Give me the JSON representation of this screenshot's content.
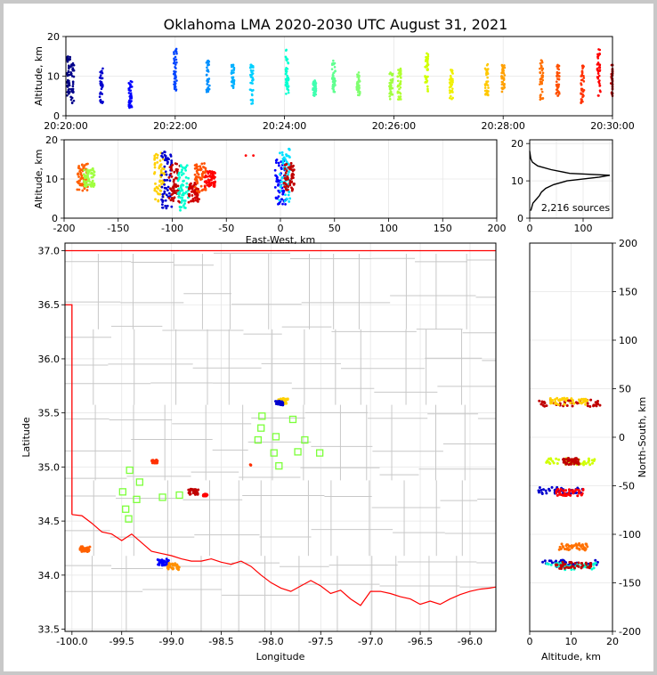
{
  "chart_data": {
    "type": "scatter",
    "title": "Oklahoma LMA 2020-2030 UTC August 31, 2021",
    "panels": {
      "time_altitude": {
        "ylabel": "Altitude, km",
        "ylim": [
          0,
          20
        ],
        "yticks": [
          "0",
          "10",
          "20"
        ],
        "xticks": [
          "20:20:00",
          "20:22:00",
          "20:24:00",
          "20:26:00",
          "20:28:00",
          "20:30:00"
        ],
        "xlim_minutes": [
          0,
          10
        ],
        "clusters": [
          {
            "t": 0.05,
            "alt_min": 5,
            "alt_max": 15,
            "color": "#000080"
          },
          {
            "t": 0.12,
            "alt_min": 3,
            "alt_max": 14,
            "color": "#00008b"
          },
          {
            "t": 0.65,
            "alt_min": 3,
            "alt_max": 12,
            "color": "#0000cd"
          },
          {
            "t": 1.18,
            "alt_min": 2,
            "alt_max": 9,
            "color": "#0000ff"
          },
          {
            "t": 2.0,
            "alt_min": 6,
            "alt_max": 17,
            "color": "#0044ff"
          },
          {
            "t": 2.6,
            "alt_min": 6,
            "alt_max": 14,
            "color": "#0090ff"
          },
          {
            "t": 3.05,
            "alt_min": 7,
            "alt_max": 13,
            "color": "#00b0ff"
          },
          {
            "t": 3.4,
            "alt_min": 3,
            "alt_max": 13,
            "color": "#00d0ff"
          },
          {
            "t": 4.05,
            "alt_min": 5,
            "alt_max": 17,
            "color": "#00ffd0"
          },
          {
            "t": 4.55,
            "alt_min": 5,
            "alt_max": 9,
            "color": "#40ffb0"
          },
          {
            "t": 4.9,
            "alt_min": 6,
            "alt_max": 14,
            "color": "#60ff90"
          },
          {
            "t": 5.35,
            "alt_min": 5,
            "alt_max": 11,
            "color": "#80ff70"
          },
          {
            "t": 5.95,
            "alt_min": 4,
            "alt_max": 11,
            "color": "#a0ff40"
          },
          {
            "t": 6.1,
            "alt_min": 4,
            "alt_max": 12,
            "color": "#b0ff30"
          },
          {
            "t": 6.6,
            "alt_min": 6,
            "alt_max": 16,
            "color": "#d0ff00"
          },
          {
            "t": 7.05,
            "alt_min": 4,
            "alt_max": 12,
            "color": "#f0f000"
          },
          {
            "t": 7.7,
            "alt_min": 5,
            "alt_max": 13,
            "color": "#ffc800"
          },
          {
            "t": 8.0,
            "alt_min": 6,
            "alt_max": 13,
            "color": "#ffa000"
          },
          {
            "t": 8.7,
            "alt_min": 4,
            "alt_max": 14,
            "color": "#ff7000"
          },
          {
            "t": 9.0,
            "alt_min": 5,
            "alt_max": 13,
            "color": "#ff5000"
          },
          {
            "t": 9.45,
            "alt_min": 3,
            "alt_max": 13,
            "color": "#ff3000"
          },
          {
            "t": 9.75,
            "alt_min": 5,
            "alt_max": 17,
            "color": "#ff0000"
          },
          {
            "t": 10.0,
            "alt_min": 5,
            "alt_max": 13,
            "color": "#b00000"
          }
        ]
      },
      "ew_altitude": {
        "xlabel": "East-West, km",
        "ylabel": "Altitude, km",
        "xlim": [
          -200,
          200
        ],
        "ylim": [
          0,
          20
        ],
        "xticks": [
          "-200",
          "-150",
          "-100",
          "-50",
          "0",
          "50",
          "100",
          "150",
          "200"
        ],
        "yticks": [
          "0",
          "10",
          "20"
        ],
        "clusters": [
          {
            "x": -183,
            "alt_min": 7,
            "alt_max": 14,
            "color": "#ff6000"
          },
          {
            "x": -177,
            "alt_min": 8,
            "alt_max": 13,
            "color": "#a0ff40"
          },
          {
            "x": -112,
            "alt_min": 4,
            "alt_max": 17,
            "color": "#ffd000"
          },
          {
            "x": -105,
            "alt_min": 2,
            "alt_max": 17,
            "color": "#0000cd"
          },
          {
            "x": -98,
            "alt_min": 4,
            "alt_max": 14,
            "color": "#c00000"
          },
          {
            "x": -90,
            "alt_min": 2,
            "alt_max": 14,
            "color": "#00ffd0"
          },
          {
            "x": -80,
            "alt_min": 4,
            "alt_max": 9,
            "color": "#d00000"
          },
          {
            "x": -74,
            "alt_min": 6,
            "alt_max": 14,
            "color": "#ff5000"
          },
          {
            "x": -65,
            "alt_min": 8,
            "alt_max": 12,
            "color": "#ff0000"
          },
          {
            "x": -27,
            "alt_min": 16,
            "alt_max": 16,
            "color": "#ff0000"
          },
          {
            "x": 0,
            "alt_min": 3,
            "alt_max": 15,
            "color": "#0000ff"
          },
          {
            "x": 4,
            "alt_min": 4,
            "alt_max": 18,
            "color": "#00e0ff"
          },
          {
            "x": 8,
            "alt_min": 7,
            "alt_max": 14,
            "color": "#c00000"
          }
        ]
      },
      "altitude_histogram": {
        "xticks": [
          "0",
          "100"
        ],
        "yticks": [
          "0",
          "10",
          "20"
        ],
        "xlim": [
          0,
          155
        ],
        "ylim": [
          0,
          21
        ],
        "annotation": "2,216 sources",
        "counts_by_altitude": [
          {
            "alt": 2,
            "n": 2
          },
          {
            "alt": 3,
            "n": 4
          },
          {
            "alt": 4,
            "n": 6
          },
          {
            "alt": 5,
            "n": 12
          },
          {
            "alt": 6,
            "n": 18
          },
          {
            "alt": 7,
            "n": 22
          },
          {
            "alt": 8,
            "n": 30
          },
          {
            "alt": 9,
            "n": 45
          },
          {
            "alt": 10,
            "n": 70
          },
          {
            "alt": 11,
            "n": 130
          },
          {
            "alt": 11.5,
            "n": 150
          },
          {
            "alt": 12,
            "n": 75
          },
          {
            "alt": 13,
            "n": 40
          },
          {
            "alt": 14,
            "n": 15
          },
          {
            "alt": 15,
            "n": 5
          },
          {
            "alt": 16,
            "n": 2
          },
          {
            "alt": 17,
            "n": 1
          },
          {
            "alt": 18,
            "n": 0
          }
        ]
      },
      "plan_view": {
        "xlabel": "Longitude",
        "ylabel": "Latitude",
        "xlim": [
          -100.07,
          -95.74
        ],
        "ylim": [
          33.48,
          37.07
        ],
        "xticks": [
          "-100.0",
          "-99.5",
          "-99.0",
          "-98.5",
          "-98.0",
          "-97.5",
          "-97.0",
          "-96.5",
          "-96.0"
        ],
        "yticks": [
          "33.5",
          "34.0",
          "34.5",
          "35.0",
          "35.5",
          "36.0",
          "36.5",
          "37.0"
        ],
        "stations": [
          [
            -99.42,
            34.97
          ],
          [
            -99.32,
            34.86
          ],
          [
            -99.35,
            34.7
          ],
          [
            -99.49,
            34.77
          ],
          [
            -99.46,
            34.61
          ],
          [
            -99.43,
            34.52
          ],
          [
            -99.09,
            34.72
          ],
          [
            -98.09,
            35.47
          ],
          [
            -98.1,
            35.36
          ],
          [
            -97.78,
            35.44
          ],
          [
            -97.95,
            35.28
          ],
          [
            -97.66,
            35.25
          ],
          [
            -98.13,
            35.25
          ],
          [
            -97.97,
            35.13
          ],
          [
            -97.73,
            35.14
          ],
          [
            -97.51,
            35.13
          ],
          [
            -97.92,
            35.01
          ],
          [
            -98.92,
            34.74
          ]
        ],
        "clusters": [
          {
            "lon": -97.88,
            "lat": 35.61,
            "spread": 0.05,
            "color": "#ffd000"
          },
          {
            "lon": -97.92,
            "lat": 35.59,
            "spread": 0.04,
            "color": "#0000cd"
          },
          {
            "lon": -99.17,
            "lat": 35.05,
            "spread": 0.03,
            "color": "#ff3000"
          },
          {
            "lon": -98.78,
            "lat": 34.77,
            "spread": 0.05,
            "color": "#c00000"
          },
          {
            "lon": -98.66,
            "lat": 34.74,
            "spread": 0.02,
            "color": "#ff0000"
          },
          {
            "lon": -99.87,
            "lat": 34.24,
            "spread": 0.05,
            "color": "#ff6000"
          },
          {
            "lon": -99.08,
            "lat": 34.12,
            "spread": 0.06,
            "color": "#0000ff"
          },
          {
            "lon": -98.98,
            "lat": 34.08,
            "spread": 0.06,
            "color": "#ff9000"
          },
          {
            "lon": -98.2,
            "lat": 35.02,
            "spread": 0.01,
            "color": "#ff3000"
          }
        ]
      },
      "ns_altitude": {
        "xlabel": "Altitude, km",
        "ylabel": "North-South, km",
        "xlim": [
          0,
          20
        ],
        "ylim": [
          -200,
          200
        ],
        "xticks": [
          "0",
          "10",
          "20"
        ],
        "yticks": [
          "200",
          "150",
          "100",
          "50",
          "0",
          "-50",
          "-100",
          "-150",
          "-200"
        ],
        "clusters": [
          {
            "y": 35,
            "alt_min": 2,
            "alt_max": 17,
            "color": "#c00000"
          },
          {
            "y": 37,
            "alt_min": 5,
            "alt_max": 14,
            "color": "#ffd000"
          },
          {
            "y": -25,
            "alt_min": 4,
            "alt_max": 16,
            "color": "#d0ff00"
          },
          {
            "y": -25,
            "alt_min": 8,
            "alt_max": 12,
            "color": "#c00000"
          },
          {
            "y": -55,
            "alt_min": 2,
            "alt_max": 13,
            "color": "#0000cd"
          },
          {
            "y": -57,
            "alt_min": 6,
            "alt_max": 13,
            "color": "#ff0000"
          },
          {
            "y": -113,
            "alt_min": 7,
            "alt_max": 14,
            "color": "#ff7000"
          },
          {
            "y": -130,
            "alt_min": 3,
            "alt_max": 17,
            "color": "#0000cd"
          },
          {
            "y": -133,
            "alt_min": 4,
            "alt_max": 16,
            "color": "#00ffd0"
          },
          {
            "y": -132,
            "alt_min": 6,
            "alt_max": 15,
            "color": "#c00000"
          }
        ]
      }
    }
  }
}
